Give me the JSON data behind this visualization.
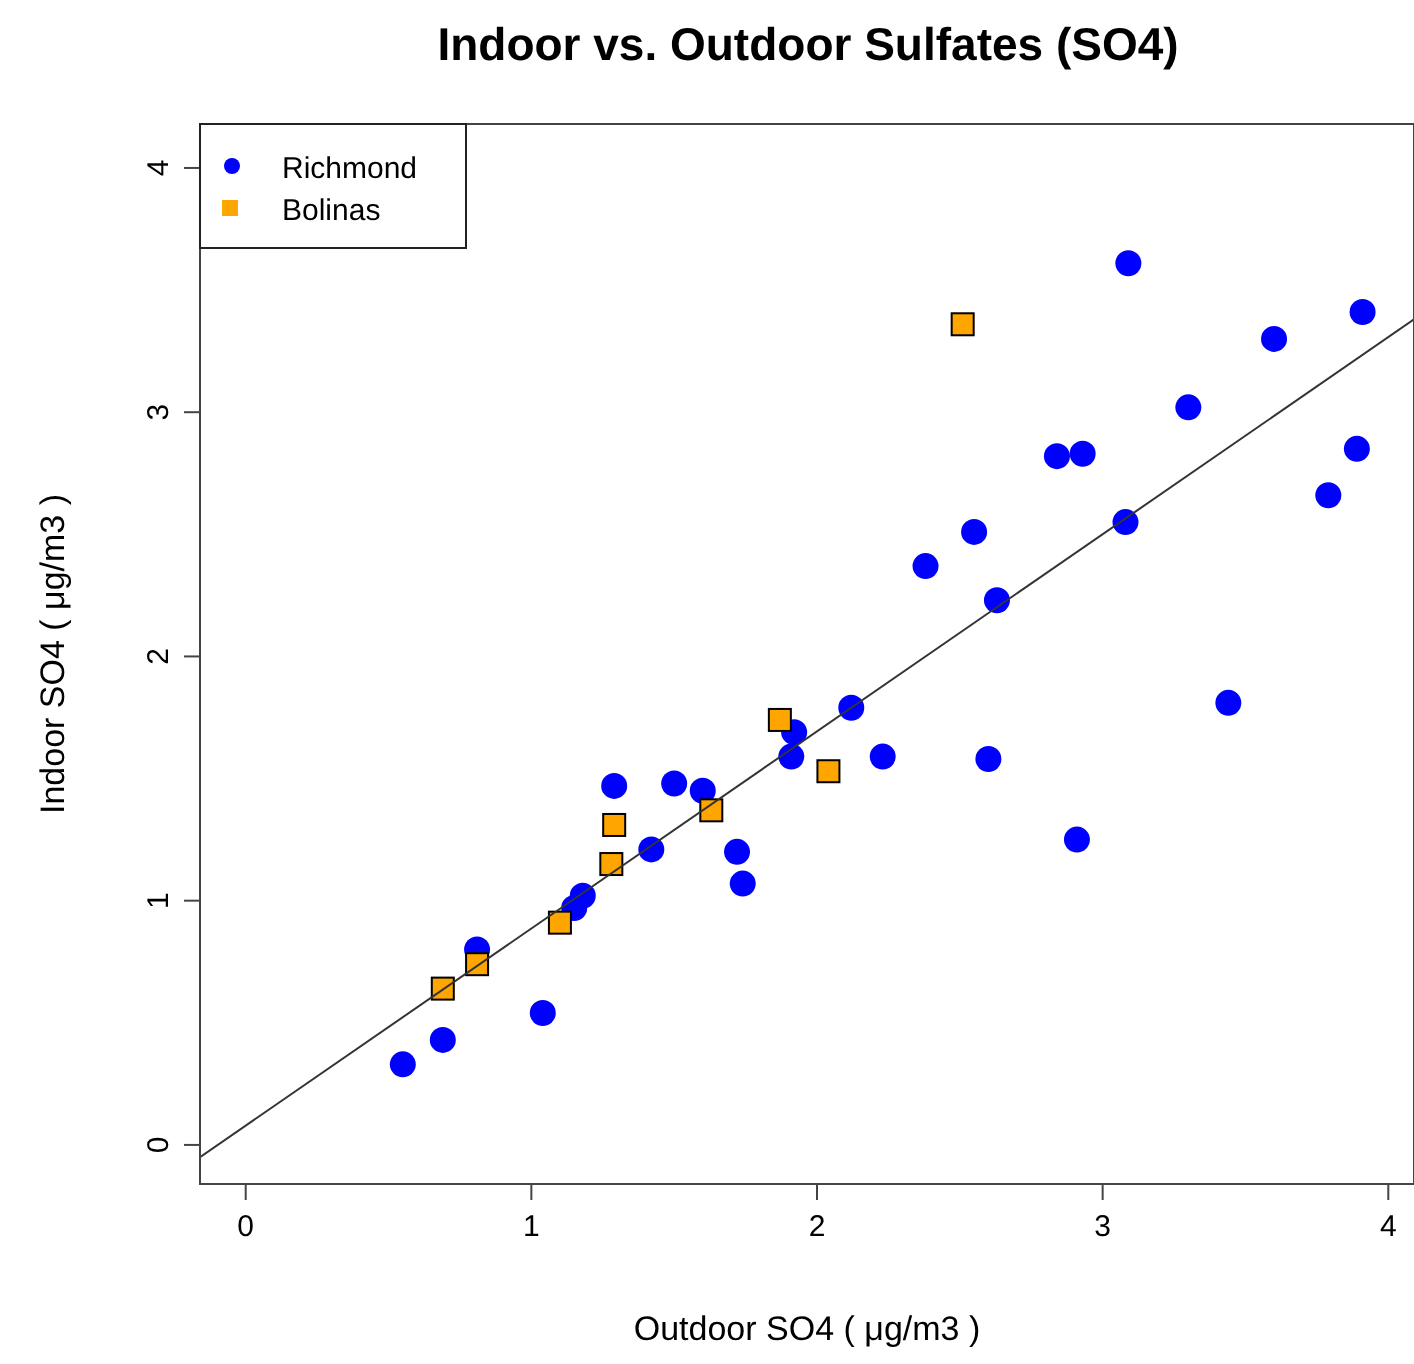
{
  "chart_data": {
    "type": "scatter",
    "title": "Indoor vs. Outdoor Sulfates (SO4)",
    "xlabel": "Outdoor SO4  ( μg/m3 )",
    "ylabel": "Indoor SO4  ( μg/m3 )",
    "xlim": [
      -0.16,
      4.09
    ],
    "ylim": [
      -0.16,
      4.18
    ],
    "xticks": [
      0,
      1,
      2,
      3,
      4
    ],
    "yticks": [
      0,
      1,
      2,
      3,
      4
    ],
    "grid": false,
    "legend": "top left",
    "series": [
      {
        "name": "Richmond",
        "color": "#0000ff",
        "marker": "circle",
        "x": [
          0.55,
          0.69,
          0.81,
          1.04,
          1.18,
          1.15,
          1.29,
          1.42,
          1.5,
          1.6,
          1.72,
          1.74,
          1.92,
          1.91,
          2.12,
          2.23,
          2.6,
          2.91,
          3.44,
          3.09,
          3.91,
          3.6,
          3.3,
          2.84,
          2.93,
          3.89,
          3.79,
          2.55,
          2.38,
          3.08,
          2.63
        ],
        "values": [
          0.33,
          0.43,
          0.8,
          0.54,
          1.02,
          0.97,
          1.47,
          1.21,
          1.48,
          1.45,
          1.2,
          1.07,
          1.69,
          1.59,
          1.79,
          1.59,
          1.58,
          1.25,
          1.81,
          3.61,
          3.41,
          3.3,
          3.02,
          2.82,
          2.83,
          2.85,
          2.66,
          2.51,
          2.37,
          2.55,
          2.23
        ]
      },
      {
        "name": "Bolinas",
        "color": "#ffa500",
        "marker": "square",
        "x": [
          0.69,
          0.81,
          1.1,
          1.28,
          1.29,
          1.63,
          1.87,
          2.04,
          2.51
        ],
        "values": [
          0.64,
          0.74,
          0.91,
          1.15,
          1.31,
          1.37,
          1.74,
          1.53,
          3.36
        ]
      },
      {
        "type": "line",
        "color": "#333333",
        "marker": "none",
        "x": [
          -0.16,
          4.09
        ],
        "values": [
          -0.05,
          3.38
        ]
      }
    ]
  }
}
